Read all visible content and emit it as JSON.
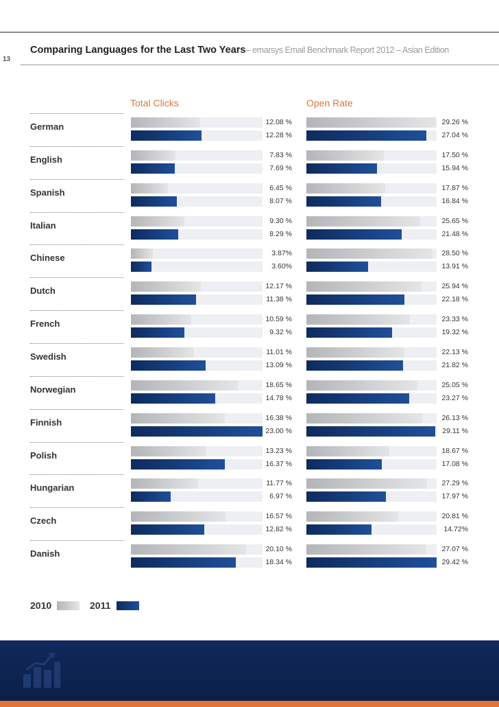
{
  "page_number": "13",
  "title": "Comparing Languages for the Last Two Years",
  "subtitle": "– emarsys Email Benchmark Report 2012 – Asian Edition",
  "legend": {
    "y2010": "2010",
    "y2011": "2011"
  },
  "colors": {
    "accent_orange": "#e0753a",
    "bar_2011": "#1a3f80",
    "bar_2010": "#b9babc",
    "footer": "#0e2554"
  },
  "icons": {
    "footer": "bar-chart-trend-icon"
  },
  "chart_data": [
    {
      "type": "bar",
      "title": "Total Clicks",
      "orientation": "horizontal",
      "categories": [
        "German",
        "English",
        "Spanish",
        "Italian",
        "Chinese",
        "Dutch",
        "French",
        "Swedish",
        "Norwegian",
        "Finnish",
        "Polish",
        "Hungarian",
        "Czech",
        "Danish"
      ],
      "xlim": [
        0,
        23
      ],
      "series": [
        {
          "name": "2010",
          "values": [
            12.08,
            7.83,
            6.45,
            9.3,
            3.87,
            12.17,
            10.59,
            11.01,
            18.65,
            16.38,
            13.23,
            11.77,
            16.57,
            20.1
          ],
          "labels": [
            "12.08 %",
            "7.83 %",
            "6.45 %",
            "9.30 %",
            "3.87%",
            "12.17 %",
            "10.59 %",
            "11.01 %",
            "18.65 %",
            "16.38 %",
            "13.23 %",
            "11.77 %",
            "16.57 %",
            "20.10 %"
          ]
        },
        {
          "name": "2011",
          "values": [
            12.28,
            7.69,
            8.07,
            8.29,
            3.6,
            11.38,
            9.32,
            13.09,
            14.78,
            23.0,
            16.37,
            6.97,
            12.82,
            18.34
          ],
          "labels": [
            "12.28 %",
            "7.69 %",
            "8.07 %",
            "8.29 %",
            "3.60%",
            "11.38 %",
            "9.32 %",
            "13.09 %",
            "14.78 %",
            "23.00 %",
            "16.37 %",
            "6.97 %",
            "12.82 %",
            "18.34 %"
          ]
        }
      ]
    },
    {
      "type": "bar",
      "title": "Open Rate",
      "orientation": "horizontal",
      "categories": [
        "German",
        "English",
        "Spanish",
        "Italian",
        "Chinese",
        "Dutch",
        "French",
        "Swedish",
        "Norwegian",
        "Finnish",
        "Polish",
        "Hungarian",
        "Czech",
        "Danish"
      ],
      "xlim": [
        0,
        29.42
      ],
      "series": [
        {
          "name": "2010",
          "values": [
            29.26,
            17.5,
            17.87,
            25.65,
            28.5,
            25.94,
            23.33,
            22.13,
            25.05,
            26.13,
            18.67,
            27.29,
            20.81,
            27.07
          ],
          "labels": [
            "29.26 %",
            "17.50 %",
            "17.87 %",
            "25.65 %",
            "28.50 %",
            "25.94 %",
            "23.33 %",
            "22.13 %",
            "25.05 %",
            "26.13 %",
            "18.67 %",
            "27.29 %",
            "20.81 %",
            "27.07 %"
          ]
        },
        {
          "name": "2011",
          "values": [
            27.04,
            15.94,
            16.84,
            21.48,
            13.91,
            22.18,
            19.32,
            21.82,
            23.27,
            29.11,
            17.08,
            17.97,
            14.72,
            29.42
          ],
          "labels": [
            "27.04 %",
            "15.94 %",
            "16.84 %",
            "21.48 %",
            "13.91 %",
            "22.18 %",
            "19.32 %",
            "21.82 %",
            "23.27 %",
            "29.11 %",
            "17.08 %",
            "17.97 %",
            "14.72%",
            "29.42 %"
          ]
        }
      ]
    }
  ]
}
